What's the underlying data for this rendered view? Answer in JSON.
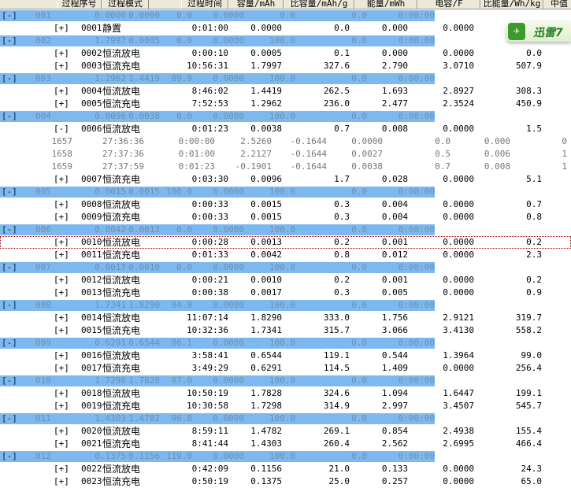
{
  "headers": [
    "过程序号",
    "过程模式",
    "过程时间",
    "容量/mAh",
    "比容量/mAh/g",
    "能量/mWh",
    "电容/F",
    "比能量/Wh/kg",
    "中值"
  ],
  "badge": {
    "label": "迅雷7",
    "icon": "bird-icon",
    "color": "#3d9a2d"
  },
  "colors": {
    "cycle_band": "#7db9f0",
    "selected_border": "#a00000"
  },
  "rows": [
    {
      "type": "cycle",
      "toggle": "[-]",
      "no": "001",
      "vals": [
        "0.0000",
        "0.0000",
        "0.0",
        "0.0000",
        "0.0",
        "0.0",
        "0:00:00"
      ]
    },
    {
      "type": "step",
      "toggle": "[+]",
      "id": "0001",
      "mode": "静置",
      "vals": [
        "0:01:00",
        "0.0000",
        "0.0",
        "0.000",
        "0.0000",
        ""
      ]
    },
    {
      "type": "cycle",
      "toggle": "[-]",
      "no": "002",
      "vals": [
        "1.7997",
        "0.0005",
        "0.0",
        "0.0000",
        "100.0",
        "0.0",
        "0:00:00"
      ]
    },
    {
      "type": "step",
      "toggle": "[+]",
      "id": "0002",
      "mode": "恒流放电",
      "vals": [
        "0:00:10",
        "0.0005",
        "0.1",
        "0.000",
        "0.0000",
        "0.0"
      ]
    },
    {
      "type": "step",
      "toggle": "[+]",
      "id": "0003",
      "mode": "恒流充电",
      "vals": [
        "10:56:31",
        "1.7997",
        "327.6",
        "2.790",
        "3.0710",
        "507.9"
      ]
    },
    {
      "type": "cycle",
      "toggle": "[-]",
      "no": "003",
      "vals": [
        "1.2962",
        "1.4419",
        "89.9",
        "0.0000",
        "100.0",
        "0.0",
        "0:00:00"
      ]
    },
    {
      "type": "step",
      "toggle": "[+]",
      "id": "0004",
      "mode": "恒流放电",
      "vals": [
        "8:46:02",
        "1.4419",
        "262.5",
        "1.693",
        "2.8927",
        "308.3"
      ]
    },
    {
      "type": "step",
      "toggle": "[+]",
      "id": "0005",
      "mode": "恒流充电",
      "vals": [
        "7:52:53",
        "1.2962",
        "236.0",
        "2.477",
        "2.3524",
        "450.9"
      ]
    },
    {
      "type": "cycle",
      "toggle": "[-]",
      "no": "004",
      "vals": [
        "0.0096",
        "0.0038",
        "0.0",
        "0.0000",
        "100.0",
        "0.0",
        "0:00:00"
      ]
    },
    {
      "type": "step",
      "toggle": "[-]",
      "id": "0006",
      "mode": "恒流放电",
      "vals": [
        "0:01:23",
        "0.0038",
        "0.7",
        "0.008",
        "0.0000",
        "1.5"
      ]
    },
    {
      "type": "detail",
      "vals": [
        "1657",
        "27:36:36",
        "0:00:00",
        "2.5260",
        "-0.1644",
        "0.0000",
        "0.0",
        "0.000",
        "0"
      ]
    },
    {
      "type": "detail",
      "vals": [
        "1658",
        "27:37:36",
        "0:01:00",
        "2.2127",
        "-0.1644",
        "0.0027",
        "0.5",
        "0.006",
        "1"
      ]
    },
    {
      "type": "detail",
      "vals": [
        "1659",
        "27:37:59",
        "0:01:23",
        "-0.1901",
        "-0.1644",
        "0.0038",
        "0.7",
        "0.008",
        "1"
      ]
    },
    {
      "type": "step",
      "toggle": "[+]",
      "id": "0007",
      "mode": "恒流充电",
      "vals": [
        "0:03:30",
        "0.0096",
        "1.7",
        "0.028",
        "0.0000",
        "5.1"
      ]
    },
    {
      "type": "cycle",
      "toggle": "[-]",
      "no": "005",
      "vals": [
        "0.0015",
        "0.0015",
        "100.0",
        "0.0000",
        "100.0",
        "0.0",
        "0:00:00"
      ]
    },
    {
      "type": "step",
      "toggle": "[+]",
      "id": "0008",
      "mode": "恒流放电",
      "vals": [
        "0:00:33",
        "0.0015",
        "0.3",
        "0.004",
        "0.0000",
        "0.7"
      ]
    },
    {
      "type": "step",
      "toggle": "[+]",
      "id": "0009",
      "mode": "恒流充电",
      "vals": [
        "0:00:33",
        "0.0015",
        "0.3",
        "0.004",
        "0.0000",
        "0.8"
      ]
    },
    {
      "type": "cycle",
      "toggle": "[-]",
      "no": "006",
      "vals": [
        "0.0042",
        "0.0013",
        "0.0",
        "0.0000",
        "100.0",
        "0.0",
        "0:00:00"
      ]
    },
    {
      "type": "step",
      "toggle": "[+]",
      "id": "0010",
      "mode": "恒流放电",
      "selected": true,
      "vals": [
        "0:00:28",
        "0.0013",
        "0.2",
        "0.001",
        "0.0000",
        "0.2"
      ]
    },
    {
      "type": "step",
      "toggle": "[+]",
      "id": "0011",
      "mode": "恒流充电",
      "vals": [
        "0:01:33",
        "0.0042",
        "0.8",
        "0.012",
        "0.0000",
        "2.3"
      ]
    },
    {
      "type": "cycle",
      "toggle": "[-]",
      "no": "007",
      "vals": [
        "0.0017",
        "0.0010",
        "0.0",
        "0.0000",
        "100.0",
        "0.0",
        "0:00:00"
      ]
    },
    {
      "type": "step",
      "toggle": "[+]",
      "id": "0012",
      "mode": "恒流放电",
      "vals": [
        "0:00:21",
        "0.0010",
        "0.2",
        "0.001",
        "0.0000",
        "0.2"
      ]
    },
    {
      "type": "step",
      "toggle": "[+]",
      "id": "0013",
      "mode": "恒流充电",
      "vals": [
        "0:00:38",
        "0.0017",
        "0.3",
        "0.005",
        "0.0000",
        "0.9"
      ]
    },
    {
      "type": "cycle",
      "toggle": "[-]",
      "no": "008",
      "vals": [
        "1.7341",
        "1.8290",
        "94.8",
        "0.0000",
        "100.0",
        "0.0",
        "0:00:00"
      ]
    },
    {
      "type": "step",
      "toggle": "[+]",
      "id": "0014",
      "mode": "恒流放电",
      "vals": [
        "11:07:14",
        "1.8290",
        "333.0",
        "1.756",
        "2.9121",
        "319.7"
      ]
    },
    {
      "type": "step",
      "toggle": "[+]",
      "id": "0015",
      "mode": "恒流充电",
      "vals": [
        "10:32:36",
        "1.7341",
        "315.7",
        "3.066",
        "3.4130",
        "558.2"
      ]
    },
    {
      "type": "cycle",
      "toggle": "[-]",
      "no": "009",
      "vals": [
        "0.6291",
        "0.6544",
        "96.1",
        "0.0000",
        "100.0",
        "0.0",
        "0:00:00"
      ]
    },
    {
      "type": "step",
      "toggle": "[+]",
      "id": "0016",
      "mode": "恒流放电",
      "vals": [
        "3:58:41",
        "0.6544",
        "119.1",
        "0.544",
        "1.3964",
        "99.0"
      ]
    },
    {
      "type": "step",
      "toggle": "[+]",
      "id": "0017",
      "mode": "恒流充电",
      "vals": [
        "3:49:29",
        "0.6291",
        "114.5",
        "1.409",
        "0.0000",
        "256.4"
      ]
    },
    {
      "type": "cycle",
      "toggle": "[-]",
      "no": "010",
      "vals": [
        "1.7298",
        "1.7828",
        "97.0",
        "0.0000",
        "100.0",
        "0.0",
        "0:00:00"
      ]
    },
    {
      "type": "step",
      "toggle": "[+]",
      "id": "0018",
      "mode": "恒流放电",
      "vals": [
        "10:50:19",
        "1.7828",
        "324.6",
        "1.094",
        "1.6447",
        "199.1"
      ]
    },
    {
      "type": "step",
      "toggle": "[+]",
      "id": "0019",
      "mode": "恒流充电",
      "vals": [
        "10:30:58",
        "1.7298",
        "314.9",
        "2.997",
        "3.4507",
        "545.7"
      ]
    },
    {
      "type": "cycle",
      "toggle": "[-]",
      "no": "011",
      "vals": [
        "1.4303",
        "1.4782",
        "96.8",
        "0.0000",
        "100.0",
        "0.0",
        "0:00:00"
      ]
    },
    {
      "type": "step",
      "toggle": "[+]",
      "id": "0020",
      "mode": "恒流放电",
      "vals": [
        "8:59:11",
        "1.4782",
        "269.1",
        "0.854",
        "2.4938",
        "155.4"
      ]
    },
    {
      "type": "step",
      "toggle": "[+]",
      "id": "0021",
      "mode": "恒流充电",
      "vals": [
        "8:41:44",
        "1.4303",
        "260.4",
        "2.562",
        "2.6995",
        "466.4"
      ]
    },
    {
      "type": "cycle",
      "toggle": "[-]",
      "no": "012",
      "vals": [
        "0.1375",
        "0.1156",
        "119.0",
        "0.0000",
        "100.0",
        "0.0",
        "0:00:00"
      ]
    },
    {
      "type": "step",
      "toggle": "[+]",
      "id": "0022",
      "mode": "恒流放电",
      "vals": [
        "0:42:09",
        "0.1156",
        "21.0",
        "0.133",
        "0.0000",
        "24.3"
      ]
    },
    {
      "type": "step",
      "toggle": "[+]",
      "id": "0023",
      "mode": "恒流充电",
      "vals": [
        "0:50:19",
        "0.1375",
        "25.0",
        "0.257",
        "0.0000",
        "65.0"
      ]
    }
  ]
}
